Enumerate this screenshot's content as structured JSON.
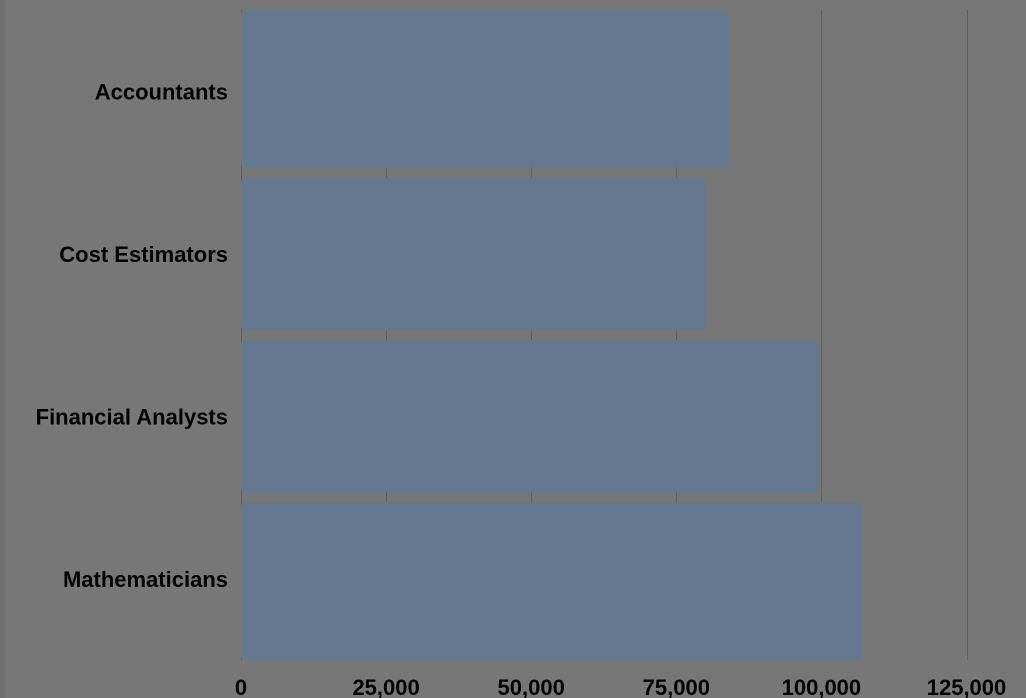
{
  "chart_data": {
    "type": "bar",
    "orientation": "horizontal",
    "title": "",
    "xlabel": "",
    "ylabel": "",
    "categories": [
      "Accountants",
      "Cost Estimators",
      "Financial Analysts",
      "Mathematicians"
    ],
    "values": [
      84000,
      80000,
      99500,
      107000
    ],
    "xlim": [
      0,
      125000
    ],
    "x_ticks": [
      0,
      25000,
      50000,
      75000,
      100000,
      125000
    ],
    "x_tick_labels": [
      "0",
      "25,000",
      "50,000",
      "75,000",
      "100,000",
      "125,000"
    ],
    "grid": true,
    "legend": "none"
  },
  "colors": {
    "background": "#777777",
    "bar": "#64798f",
    "gridline": "#5e5e5e",
    "text": "#000000"
  }
}
